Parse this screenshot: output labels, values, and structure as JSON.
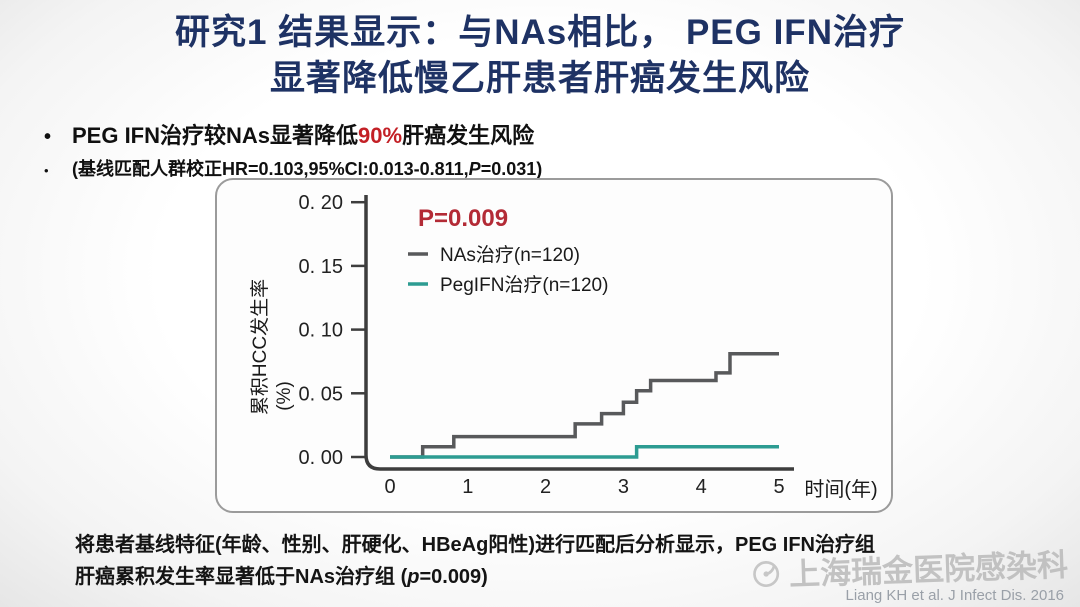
{
  "slide": {
    "title_line1": "研究1 结果显示：与NAs相比， PEG IFN治疗",
    "title_line2": "显著降低慢乙肝患者肝癌发生风险",
    "bullet1": {
      "marker": "•",
      "pre": "PEG IFN治疗较NAs显著降低",
      "highlight": "90%",
      "highlight_color": "#c32026",
      "post": "肝癌发生风险"
    },
    "bullet2": {
      "marker": "•",
      "pre": "(基线匹配人群校正HR=0.103,95%CI:0.013-0.811,",
      "italic": "P",
      "post": "=0.031)"
    },
    "footer": {
      "line1": "将患者基线特征(年龄、性别、肝硬化、HBeAg阳性)进行匹配后分析显示，PEG IFN治疗组",
      "line2_pre": "肝癌累积发生率显著低于NAs治疗组 (",
      "line2_italic": "p",
      "line2_post": "=0.009)"
    },
    "watermark_text": "上海瑞金医院感染科",
    "citation": "Liang KH et al. J Infect Dis. 2016"
  },
  "chart_data": {
    "type": "line",
    "subtype": "kaplan-meier-step",
    "p_value_label": "P=0.009",
    "p_value_color": "#b32b36",
    "xlabel": "时间(年)",
    "ylabel_line1": "累积HCC发生率",
    "ylabel_line2": "(%)",
    "xlim": [
      0,
      5
    ],
    "ylim": [
      0,
      0.2
    ],
    "x_ticks": [
      "0",
      "1",
      "2",
      "3",
      "4",
      "5"
    ],
    "y_ticks": [
      {
        "value": 0.0,
        "label": "0. 00"
      },
      {
        "value": 0.05,
        "label": "0. 05"
      },
      {
        "value": 0.1,
        "label": "0. 10"
      },
      {
        "value": 0.15,
        "label": "0. 15"
      },
      {
        "value": 0.2,
        "label": "0. 20"
      }
    ],
    "legend_position": "upper-left-inside",
    "series": [
      {
        "name": "NAs治疗(n=120)",
        "color": "#58595b",
        "steps": [
          [
            0,
            0
          ],
          [
            0.42,
            0.008
          ],
          [
            0.82,
            0.016
          ],
          [
            2.38,
            0.026
          ],
          [
            2.72,
            0.034
          ],
          [
            3.0,
            0.043
          ],
          [
            3.17,
            0.052
          ],
          [
            3.35,
            0.06
          ],
          [
            4.19,
            0.066
          ],
          [
            4.37,
            0.081
          ]
        ],
        "end_x": 5
      },
      {
        "name": "PegIFN治疗(n=120)",
        "color": "#2d9c92",
        "steps": [
          [
            0,
            0
          ],
          [
            3.17,
            0.008
          ]
        ],
        "end_x": 5
      }
    ]
  }
}
